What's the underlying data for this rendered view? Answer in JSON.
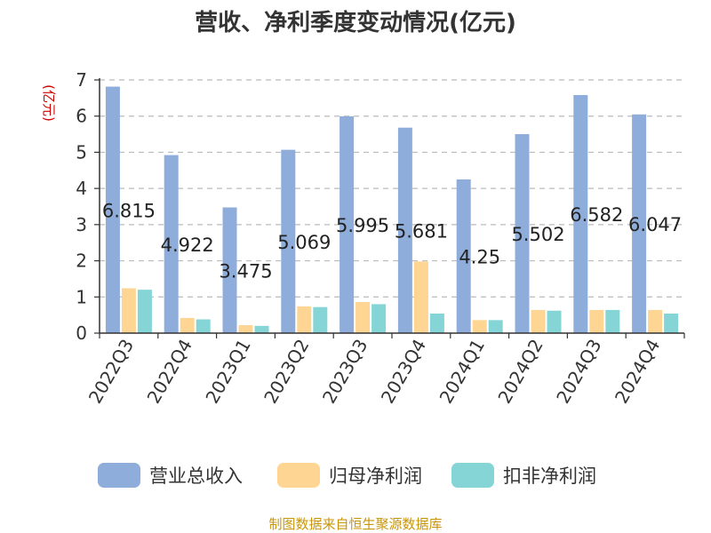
{
  "chart_data": {
    "type": "bar",
    "title": "营收、净利季度变动情况(亿元)",
    "unit_label": "(亿元)",
    "categories": [
      "2022Q3",
      "2022Q4",
      "2023Q1",
      "2023Q2",
      "2023Q3",
      "2023Q4",
      "2024Q1",
      "2024Q2",
      "2024Q3",
      "2024Q4"
    ],
    "series": [
      {
        "name": "营业总收入",
        "color": "#8eaddb",
        "values": [
          6.815,
          4.922,
          3.475,
          5.069,
          5.995,
          5.681,
          4.25,
          5.502,
          6.582,
          6.047
        ],
        "labels": [
          "6.815",
          "4.922",
          "3.475",
          "5.069",
          "5.995",
          "5.681",
          "4.25",
          "5.502",
          "6.582",
          "6.047"
        ]
      },
      {
        "name": "归母净利润",
        "color": "#ffd593",
        "values": [
          1.24,
          0.42,
          0.22,
          0.74,
          0.86,
          1.98,
          0.36,
          0.64,
          0.64,
          0.64
        ]
      },
      {
        "name": "扣非净利润",
        "color": "#85d4d6",
        "values": [
          1.2,
          0.38,
          0.2,
          0.72,
          0.8,
          0.54,
          0.36,
          0.62,
          0.64,
          0.54
        ]
      }
    ],
    "ylim": [
      0,
      7
    ],
    "yticks": [
      "0",
      "1",
      "2",
      "3",
      "4",
      "5",
      "6",
      "7"
    ],
    "grid": true,
    "legend_position": "bottom",
    "source": "制图数据来自恒生聚源数据库"
  }
}
